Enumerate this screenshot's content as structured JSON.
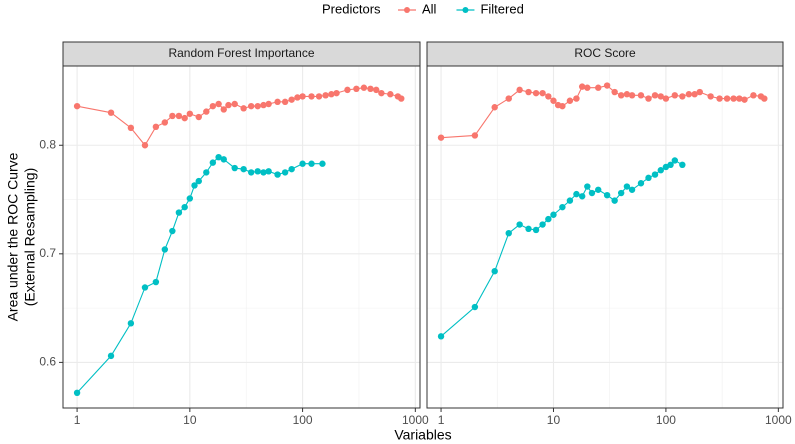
{
  "legend": {
    "title": "Predictors"
  },
  "xlabel": "Variables",
  "ylabel": [
    "Area under the ROC Curve",
    "(External Resampling)"
  ],
  "chart_data": [
    {
      "type": "line",
      "title": "Random Forest Importance",
      "log_x": true,
      "grid": true,
      "xlim": [
        0.75,
        1100
      ],
      "xticks": [
        1,
        10,
        100,
        1000
      ],
      "ylim": [
        0.558,
        0.873
      ],
      "yticks": [
        0.6,
        0.7,
        0.8
      ],
      "series": [
        {
          "name": "All",
          "color": "#F8766D",
          "x": [
            1,
            2,
            3,
            4,
            5,
            6,
            7,
            8,
            9,
            10,
            12,
            14,
            16,
            18,
            20,
            22,
            25,
            30,
            35,
            40,
            45,
            50,
            60,
            70,
            80,
            90,
            100,
            120,
            140,
            160,
            180,
            200,
            250,
            300,
            350,
            400,
            450,
            500,
            600,
            700,
            750
          ],
          "values": [
            0.836,
            0.83,
            0.816,
            0.8,
            0.817,
            0.821,
            0.827,
            0.827,
            0.825,
            0.829,
            0.826,
            0.831,
            0.836,
            0.838,
            0.833,
            0.837,
            0.838,
            0.834,
            0.836,
            0.836,
            0.837,
            0.838,
            0.84,
            0.84,
            0.842,
            0.844,
            0.845,
            0.845,
            0.845,
            0.846,
            0.847,
            0.848,
            0.851,
            0.852,
            0.853,
            0.852,
            0.851,
            0.848,
            0.847,
            0.845,
            0.843
          ]
        },
        {
          "name": "Filtered",
          "color": "#00BFC4",
          "x": [
            1,
            2,
            3,
            4,
            5,
            6,
            7,
            8,
            9,
            10,
            11,
            12,
            14,
            16,
            18,
            20,
            25,
            30,
            35,
            40,
            45,
            50,
            60,
            70,
            80,
            100,
            120,
            150
          ],
          "values": [
            0.572,
            0.606,
            0.636,
            0.669,
            0.674,
            0.704,
            0.721,
            0.738,
            0.743,
            0.751,
            0.763,
            0.767,
            0.775,
            0.784,
            0.789,
            0.787,
            0.779,
            0.778,
            0.775,
            0.776,
            0.775,
            0.776,
            0.773,
            0.775,
            0.778,
            0.783,
            0.783,
            0.783
          ]
        }
      ]
    },
    {
      "type": "line",
      "title": "ROC Score",
      "log_x": true,
      "grid": true,
      "xlim": [
        0.75,
        1100
      ],
      "xticks": [
        1,
        10,
        100,
        1000
      ],
      "ylim": [
        0.558,
        0.873
      ],
      "yticks": [
        0.6,
        0.7,
        0.8
      ],
      "series": [
        {
          "name": "All",
          "color": "#F8766D",
          "x": [
            1,
            2,
            3,
            4,
            5,
            6,
            7,
            8,
            9,
            10,
            11,
            12,
            14,
            16,
            18,
            20,
            25,
            30,
            35,
            40,
            45,
            50,
            60,
            70,
            80,
            90,
            100,
            120,
            140,
            160,
            180,
            200,
            250,
            300,
            350,
            400,
            450,
            500,
            600,
            700,
            750
          ],
          "values": [
            0.807,
            0.809,
            0.835,
            0.843,
            0.851,
            0.849,
            0.848,
            0.848,
            0.845,
            0.841,
            0.837,
            0.836,
            0.841,
            0.843,
            0.854,
            0.853,
            0.853,
            0.855,
            0.849,
            0.846,
            0.847,
            0.846,
            0.846,
            0.843,
            0.846,
            0.845,
            0.843,
            0.846,
            0.845,
            0.847,
            0.847,
            0.849,
            0.845,
            0.843,
            0.843,
            0.843,
            0.843,
            0.842,
            0.846,
            0.845,
            0.843
          ]
        },
        {
          "name": "Filtered",
          "color": "#00BFC4",
          "x": [
            1,
            2,
            3,
            4,
            5,
            6,
            7,
            8,
            9,
            10,
            12,
            14,
            16,
            18,
            20,
            22,
            25,
            30,
            35,
            40,
            45,
            50,
            60,
            70,
            80,
            90,
            100,
            110,
            120,
            140
          ],
          "values": [
            0.624,
            0.651,
            0.684,
            0.719,
            0.727,
            0.723,
            0.722,
            0.727,
            0.732,
            0.736,
            0.743,
            0.749,
            0.755,
            0.753,
            0.762,
            0.756,
            0.759,
            0.754,
            0.749,
            0.756,
            0.762,
            0.759,
            0.765,
            0.77,
            0.773,
            0.777,
            0.78,
            0.782,
            0.786,
            0.782
          ]
        }
      ]
    }
  ]
}
